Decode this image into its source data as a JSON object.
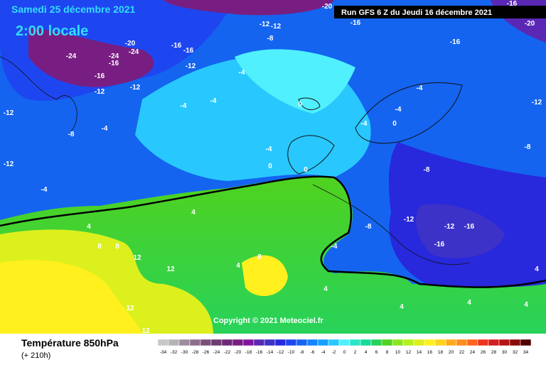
{
  "header": {
    "date": "Samedi 25 décembre 2021",
    "time": "2:00 locale",
    "run": "Run GFS 6 Z du Jeudi 16 décembre 2021"
  },
  "copyright": "Copyright © 2021 Meteociel.fr",
  "legend": {
    "title": "Température 850hPa",
    "subtitle": "(+ 210h)",
    "ticks": [
      -34,
      -32,
      -30,
      -28,
      -26,
      -24,
      -22,
      -20,
      -18,
      -16,
      -14,
      -12,
      -10,
      -8,
      -6,
      -4,
      -2,
      0,
      2,
      4,
      6,
      8,
      10,
      12,
      14,
      16,
      18,
      20,
      22,
      24,
      26,
      28,
      30,
      32,
      34
    ],
    "colors": [
      "#c8c8c8",
      "#b4b4b4",
      "#a08ca0",
      "#8c6e8c",
      "#7a507a",
      "#6e3c6e",
      "#6e2878",
      "#781e82",
      "#8214a0",
      "#5a28b4",
      "#3c32c8",
      "#2828dc",
      "#1e46f0",
      "#1464f0",
      "#1482ff",
      "#14a0ff",
      "#28c8ff",
      "#50f0ff",
      "#28e6c8",
      "#14dc96",
      "#28d25a",
      "#50d21e",
      "#8ce61e",
      "#b4f01e",
      "#dcf01e",
      "#fff01e",
      "#ffd21e",
      "#ffaa1e",
      "#ff8c1e",
      "#ff641e",
      "#f0321e",
      "#d21e1e",
      "#b41414",
      "#8c0a0a",
      "#500000"
    ]
  },
  "map": {
    "contour_labels": [
      "-24",
      "-24",
      "-24",
      "-20",
      "-16",
      "-16",
      "-12",
      "-12",
      "-16",
      "-16",
      "-12",
      "-12",
      "-12",
      "-8",
      "-4",
      "-4",
      "-4",
      "-4",
      "0",
      "0",
      "0",
      "-20",
      "-16",
      "-16",
      "-20",
      "-16",
      "-12",
      "-8",
      "-8",
      "-12",
      "-12",
      "-16",
      "-16",
      "-8",
      "-4",
      "-4",
      "-4",
      "0",
      "-4",
      "-12",
      "-12",
      "-4",
      "-8",
      "-4",
      "4",
      "4",
      "8",
      "8",
      "12",
      "12",
      "12",
      "12",
      "4",
      "8",
      "4",
      "4",
      "4",
      "4",
      "4"
    ]
  }
}
